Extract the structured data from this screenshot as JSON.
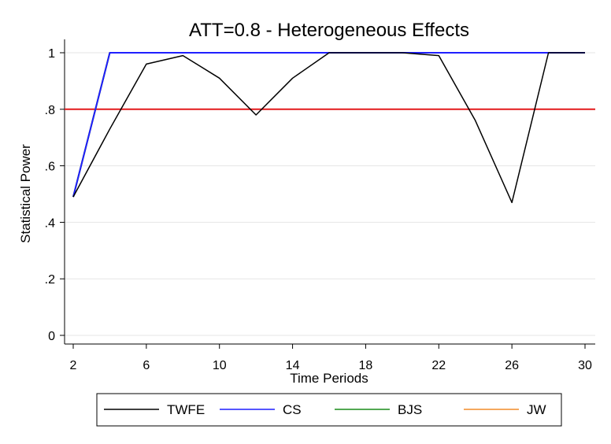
{
  "chart_data": {
    "type": "line",
    "title": "ATT=0.8 - Heterogeneous Effects",
    "xlabel": "Time Periods",
    "ylabel": "Statistical Power",
    "xlim": [
      2,
      30
    ],
    "ylim": [
      0,
      1
    ],
    "x_ticks": [
      2,
      6,
      10,
      14,
      18,
      22,
      26,
      30
    ],
    "y_ticks": [
      0,
      0.2,
      0.4,
      0.6,
      0.8,
      1
    ],
    "y_tick_labels": [
      "0",
      ".2",
      ".4",
      ".6",
      ".8",
      "1"
    ],
    "x": [
      2,
      4,
      6,
      8,
      10,
      12,
      14,
      16,
      18,
      20,
      22,
      24,
      26,
      28,
      30
    ],
    "series": [
      {
        "name": "TWFE",
        "color": "#000000",
        "values": [
          0.49,
          0.73,
          0.96,
          0.99,
          0.91,
          0.78,
          0.91,
          1.0,
          1.0,
          1.0,
          0.99,
          0.76,
          0.47,
          1.0,
          1.0
        ]
      },
      {
        "name": "CS",
        "color": "#1f1fff",
        "values": [
          0.49,
          1.0,
          1.0,
          1.0,
          1.0,
          1.0,
          1.0,
          1.0,
          1.0,
          1.0,
          1.0,
          1.0,
          1.0,
          1.0,
          1.0
        ]
      },
      {
        "name": "BJS",
        "color": "#1a8c1a",
        "values": [
          0.49,
          1.0,
          1.0,
          1.0,
          1.0,
          1.0,
          1.0,
          1.0,
          1.0,
          1.0,
          1.0,
          1.0,
          1.0,
          1.0,
          1.0
        ]
      },
      {
        "name": "JW",
        "color": "#f28c28",
        "values": [
          0.49,
          1.0,
          1.0,
          1.0,
          1.0,
          1.0,
          1.0,
          1.0,
          1.0,
          1.0,
          1.0,
          1.0,
          1.0,
          1.0,
          1.0
        ]
      }
    ],
    "reference_line": {
      "y": 0.8,
      "color": "#e31a1c"
    },
    "grid": true,
    "legend_position": "bottom"
  }
}
